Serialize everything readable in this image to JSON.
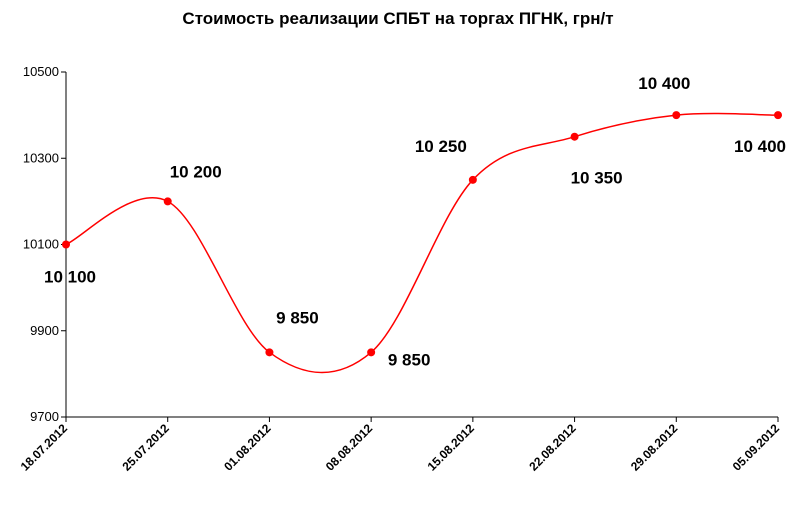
{
  "chart_data": {
    "type": "line",
    "title": "Стоимость реализации СПБТ на торгах ПГНК, грн/т",
    "xlabel": "",
    "ylabel": "",
    "categories": [
      "18.07.2012",
      "25.07.2012",
      "01.08.2012",
      "08.08.2012",
      "15.08.2012",
      "22.08.2012",
      "29.08.2012",
      "05.09.2012"
    ],
    "series": [
      {
        "values": [
          10100,
          10200,
          9850,
          9850,
          10250,
          10350,
          10400,
          10400
        ],
        "data_labels": [
          "10 100",
          "10 200",
          "9 850",
          "9 850",
          "10 250",
          "10 350",
          "10 400",
          "10 400"
        ],
        "color": "#ff0000",
        "smooth": true,
        "markers": "circle"
      }
    ],
    "ylim": [
      9700,
      10500
    ],
    "yticks": [
      9700,
      9900,
      10100,
      10300,
      10500
    ],
    "ytick_labels": [
      "9700",
      "9900",
      "10100",
      "10300",
      "10500"
    ],
    "grid": false,
    "legend": "none"
  }
}
